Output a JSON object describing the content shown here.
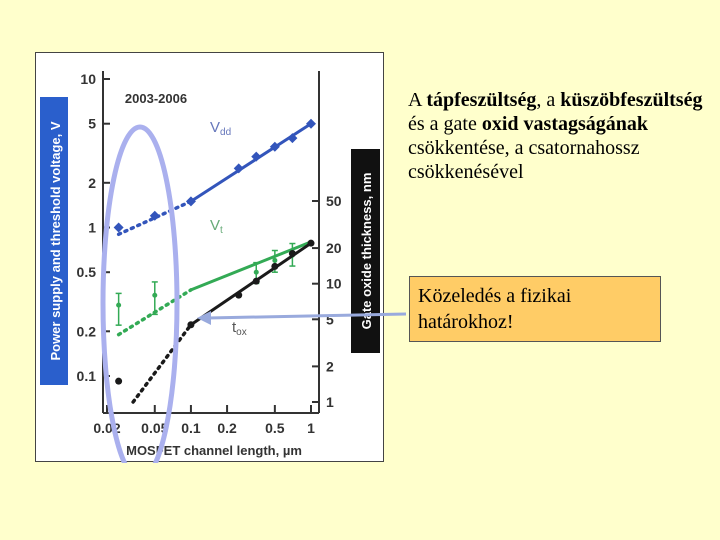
{
  "main_text": {
    "w1": "A ",
    "w2": "tápfeszültség",
    "w3": ", a ",
    "w4": "küszöbfeszültség",
    "w5": " és a gate ",
    "w6": "oxid vastagságának",
    "w7": " csökkentése, a csatornahossz csökkenésével"
  },
  "callout_text": "Közeledés a fizikai határokhoz!",
  "colors": {
    "background": "#ffffcc",
    "vdd": "#3355bb",
    "vt": "#33aa55",
    "tox": "#1a1a1a",
    "ellipse": "#aab0ee",
    "arrow": "#99aadd",
    "left_axis_band": "#2a5fcc",
    "right_axis_band": "#111111",
    "callout": "#ffcc66"
  },
  "chart_data": {
    "type": "scatter",
    "title": "2003-2006",
    "xlabel": "MOSFET channel length, µm",
    "ylabel_left": "Power supply and threshold voltage, V",
    "ylabel_right": "Gate oxide thickness, nm",
    "x_scale": "log",
    "y_scale": "log",
    "x_ticks": [
      0.02,
      0.05,
      0.1,
      0.2,
      0.5,
      1
    ],
    "x_tick_labels": [
      "0.02",
      "0.05",
      "0.1",
      "0.2",
      "0.5",
      "1"
    ],
    "y_left_ticks": [
      0.1,
      0.2,
      0.5,
      1,
      2,
      5,
      10
    ],
    "y_left_tick_labels": [
      "0.1",
      "0.2",
      "0.5",
      "1",
      "2",
      "5",
      "10"
    ],
    "y_right_ticks": [
      1,
      2,
      5,
      10,
      20,
      50
    ],
    "y_right_tick_labels": [
      "1",
      "2",
      "5",
      "10",
      "20",
      "50"
    ],
    "series": [
      {
        "name": "Vdd",
        "axis": "left",
        "measured": [
          {
            "x": 0.1,
            "y": 1.5
          },
          {
            "x": 0.25,
            "y": 2.5
          },
          {
            "x": 0.35,
            "y": 3.0
          },
          {
            "x": 0.5,
            "y": 3.5
          },
          {
            "x": 0.7,
            "y": 4.0
          },
          {
            "x": 1.0,
            "y": 5.0
          }
        ],
        "projected": [
          {
            "x": 0.025,
            "y": 1.0
          },
          {
            "x": 0.05,
            "y": 1.2
          }
        ],
        "trend_solid": [
          [
            0.1,
            1.5
          ],
          [
            1.0,
            5.0
          ]
        ],
        "trend_dotted": [
          [
            0.025,
            0.9
          ],
          [
            0.1,
            1.5
          ]
        ]
      },
      {
        "name": "Vt",
        "axis": "left",
        "measured": [
          {
            "x": 0.35,
            "y": 0.5
          },
          {
            "x": 0.5,
            "y": 0.6
          },
          {
            "x": 0.7,
            "y": 0.65
          }
        ],
        "projected": [
          {
            "x": 0.025,
            "y": 0.3
          },
          {
            "x": 0.05,
            "y": 0.35
          }
        ],
        "error_bars": [
          [
            0.025,
            0.22,
            0.36
          ],
          [
            0.05,
            0.26,
            0.43
          ],
          [
            0.35,
            0.42,
            0.58
          ],
          [
            0.5,
            0.5,
            0.7
          ],
          [
            0.7,
            0.55,
            0.78
          ]
        ],
        "trend_solid": [
          [
            0.1,
            0.38
          ],
          [
            1.0,
            0.8
          ]
        ],
        "trend_dotted": [
          [
            0.025,
            0.19
          ],
          [
            0.1,
            0.38
          ]
        ]
      },
      {
        "name": "tox",
        "axis": "right",
        "measured": [
          {
            "x": 0.1,
            "y": 4.5
          },
          {
            "x": 0.25,
            "y": 8.0
          },
          {
            "x": 0.35,
            "y": 10.5
          },
          {
            "x": 0.5,
            "y": 14.0
          },
          {
            "x": 0.7,
            "y": 18.0
          },
          {
            "x": 1.0,
            "y": 22.0
          }
        ],
        "projected": [
          {
            "x": 0.025,
            "y": 1.5
          }
        ],
        "trend_solid": [
          [
            0.1,
            4.5
          ],
          [
            1.0,
            22.0
          ]
        ],
        "trend_dotted": [
          [
            0.033,
            1.0
          ],
          [
            0.1,
            4.5
          ]
        ]
      }
    ],
    "series_labels": {
      "vdd": "V",
      "vdd_sub": "dd",
      "vt": "V",
      "vt_sub": "t",
      "tox": "t",
      "tox_sub": "ox"
    },
    "grid": false,
    "legend": "inline labels"
  }
}
